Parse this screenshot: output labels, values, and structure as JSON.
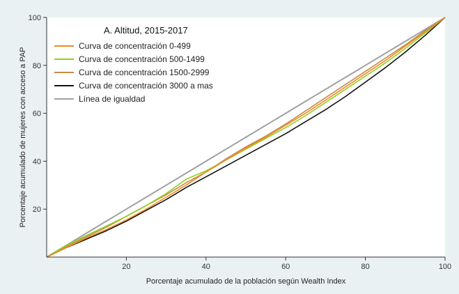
{
  "chart_data": {
    "type": "line",
    "title": "A. Altitud, 2015-2017",
    "xlabel": "Porcentaje acumulado de la población según Wealth Index",
    "ylabel": "Porcentaje acumulado de mujeres con acceso a PAP",
    "xlim": [
      0,
      100
    ],
    "ylim": [
      0,
      100
    ],
    "x_ticks": [
      20,
      40,
      60,
      80,
      100
    ],
    "y_ticks": [
      20,
      40,
      60,
      80,
      100
    ],
    "grid": false,
    "legend_placement": "top-left",
    "x": [
      0,
      5,
      10,
      15,
      20,
      25,
      30,
      35,
      40,
      45,
      50,
      55,
      60,
      65,
      70,
      75,
      80,
      85,
      90,
      95,
      100
    ],
    "series": [
      {
        "name": "Curva de concentración 0-499",
        "color": "#f08a24",
        "values": [
          0,
          4,
          8,
          11.5,
          15.5,
          20,
          25,
          30,
          35.5,
          40.5,
          45.5,
          50,
          55,
          60,
          65.5,
          71,
          76.5,
          82,
          88,
          94,
          100
        ]
      },
      {
        "name": "Curva de concentración 500-1499",
        "color": "#8fd21e",
        "values": [
          0,
          5,
          9,
          13,
          17,
          21.5,
          26.5,
          32.5,
          36,
          40.5,
          45,
          49.5,
          54,
          59,
          64.5,
          70,
          75.5,
          81,
          87,
          93.5,
          100
        ]
      },
      {
        "name": "Curva de concentración 1500-2999",
        "color": "#c58a4a",
        "values": [
          0,
          4.5,
          8.5,
          12.5,
          17,
          21.5,
          26,
          31,
          35.5,
          41,
          46,
          50.5,
          55.5,
          61,
          66.5,
          72,
          77.5,
          83,
          88.5,
          94.5,
          100
        ]
      },
      {
        "name": "Curva de concentración 3000 a mas",
        "color": "#111111",
        "values": [
          0,
          4,
          7.5,
          11,
          15,
          19.5,
          24,
          29,
          33.5,
          38,
          42.5,
          47,
          51.5,
          56.5,
          61.5,
          67,
          73,
          79,
          85.5,
          92.5,
          100
        ]
      },
      {
        "name": "Línea de igualdad",
        "color": "#a0a0a0",
        "values": [
          0,
          5,
          10,
          15,
          20,
          25,
          30,
          35,
          40,
          45,
          50,
          55,
          60,
          65,
          70,
          75,
          80,
          85,
          90,
          95,
          100
        ]
      }
    ]
  }
}
